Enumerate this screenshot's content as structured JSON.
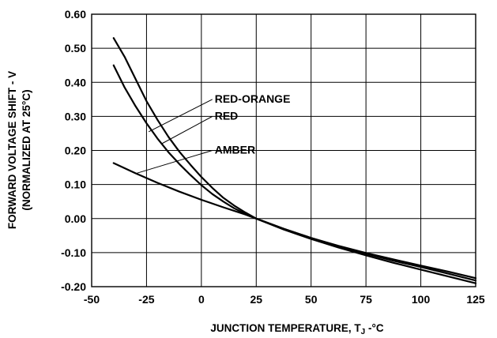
{
  "chart_data": {
    "type": "line",
    "xlabel_main": "JUNCTION TEMPERATURE, T",
    "xlabel_sub": "J",
    "xlabel_unit": " -°C",
    "ylabel": "FORWARD VOLTAGE SHIFT - V",
    "ylabel2": "(NORMALIZED AT 25°C)",
    "xlim": [
      -50,
      125
    ],
    "ylim": [
      -0.2,
      0.6
    ],
    "xticks": [
      -50,
      -25,
      0,
      25,
      50,
      75,
      100,
      125
    ],
    "xtick_labels": [
      "-50",
      "-25",
      "0",
      "25",
      "50",
      "75",
      "100",
      "125"
    ],
    "yticks": [
      0.6,
      0.5,
      0.4,
      0.3,
      0.2,
      0.1,
      0.0,
      -0.1,
      -0.2
    ],
    "ytick_labels": [
      "0.60",
      "0.50",
      "0.40",
      "0.30",
      "0.20",
      "0.10",
      "0.00",
      "-0.10",
      "-0.20"
    ],
    "grid": true,
    "series": [
      {
        "name": "RED-ORANGE",
        "x": [
          -40,
          -35,
          -30,
          -25,
          -20,
          -15,
          -10,
          -5,
          0,
          5,
          10,
          15,
          20,
          25,
          37.5,
          50,
          62.5,
          75,
          87.5,
          100,
          112.5,
          125
        ],
        "y": [
          0.53,
          0.475,
          0.41,
          0.345,
          0.29,
          0.24,
          0.196,
          0.158,
          0.122,
          0.09,
          0.061,
          0.038,
          0.018,
          0.0,
          -0.03,
          -0.057,
          -0.082,
          -0.103,
          -0.124,
          -0.142,
          -0.162,
          -0.182
        ]
      },
      {
        "name": "RED",
        "x": [
          -40,
          -35,
          -30,
          -25,
          -20,
          -15,
          -10,
          -5,
          0,
          5,
          10,
          15,
          20,
          25,
          37.5,
          50,
          62.5,
          75,
          87.5,
          100,
          112.5,
          125
        ],
        "y": [
          0.45,
          0.385,
          0.33,
          0.28,
          0.235,
          0.195,
          0.16,
          0.128,
          0.098,
          0.072,
          0.05,
          0.03,
          0.014,
          0.0,
          -0.032,
          -0.06,
          -0.085,
          -0.108,
          -0.13,
          -0.15,
          -0.17,
          -0.19
        ]
      },
      {
        "name": "AMBER",
        "x": [
          -40,
          -30,
          -20,
          -10,
          0,
          10,
          20,
          25,
          37.5,
          50,
          62.5,
          75,
          87.5,
          100,
          112.5,
          125
        ],
        "y": [
          0.163,
          0.133,
          0.105,
          0.079,
          0.055,
          0.033,
          0.012,
          0.0,
          -0.03,
          -0.057,
          -0.08,
          -0.101,
          -0.12,
          -0.138,
          -0.156,
          -0.175
        ]
      }
    ],
    "annotations": [
      {
        "series": "RED-ORANGE",
        "text": "RED-ORANGE",
        "point": [
          -24,
          0.255
        ],
        "label_anchor": [
          5,
          0.35
        ]
      },
      {
        "series": "RED",
        "text": "RED",
        "point": [
          -18,
          0.22
        ],
        "label_anchor": [
          5,
          0.3
        ]
      },
      {
        "series": "AMBER",
        "text": "AMBER",
        "point": [
          -30,
          0.132
        ],
        "label_anchor": [
          5,
          0.2
        ]
      }
    ]
  }
}
